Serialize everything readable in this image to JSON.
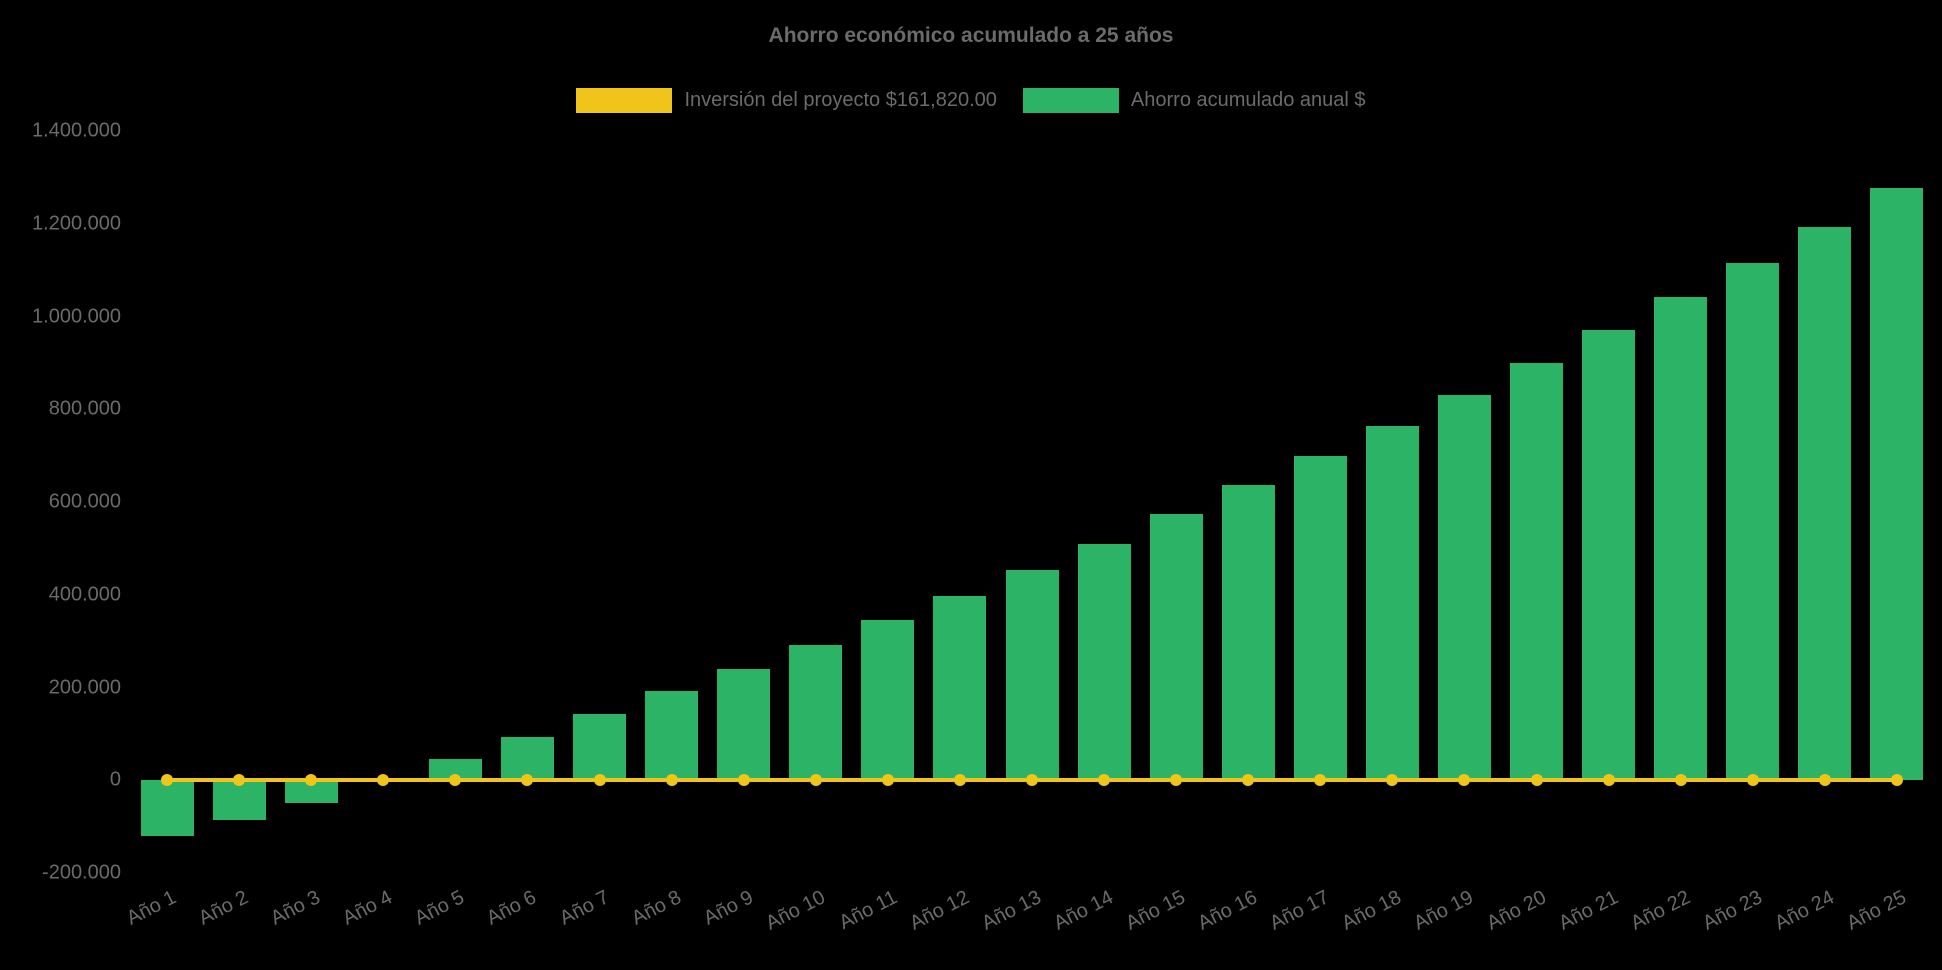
{
  "chart_data": {
    "type": "bar",
    "title": "Ahorro económico acumulado a 25 años",
    "background": "#000000",
    "text_color": "#6b6b6b",
    "grid": false,
    "legend_position": "top",
    "ylim": [
      -200000,
      1400000
    ],
    "ytick_step": 200000,
    "yticks": [
      {
        "value": -200000,
        "label": "-200.000"
      },
      {
        "value": 0,
        "label": "0"
      },
      {
        "value": 200000,
        "label": "200.000"
      },
      {
        "value": 400000,
        "label": "400.000"
      },
      {
        "value": 600000,
        "label": "600.000"
      },
      {
        "value": 800000,
        "label": "800.000"
      },
      {
        "value": 1000000,
        "label": "1.000.000"
      },
      {
        "value": 1200000,
        "label": "1.200.000"
      },
      {
        "value": 1400000,
        "label": "1.400.000"
      }
    ],
    "categories": [
      "Año 1",
      "Año 2",
      "Año 3",
      "Año 4",
      "Año 5",
      "Año 6",
      "Año 7",
      "Año 8",
      "Año 9",
      "Año 10",
      "Año 11",
      "Año 12",
      "Año 13",
      "Año 14",
      "Año 15",
      "Año 16",
      "Año 17",
      "Año 18",
      "Año 19",
      "Año 20",
      "Año 21",
      "Año 22",
      "Año 23",
      "Año 24",
      "Año 25"
    ],
    "series": [
      {
        "name": "Inversión del proyecto $161,820.00",
        "type": "line",
        "color": "#f0c419",
        "values": [
          0,
          0,
          0,
          0,
          0,
          0,
          0,
          0,
          0,
          0,
          0,
          0,
          0,
          0,
          0,
          0,
          0,
          0,
          0,
          0,
          0,
          0,
          0,
          0,
          0
        ]
      },
      {
        "name": "Ahorro acumulado anual $",
        "type": "bar",
        "color": "#2db365",
        "values": [
          -120000,
          -85000,
          -48000,
          -2000,
          45000,
          93000,
          142000,
          192000,
          240000,
          291000,
          345000,
          398000,
          454000,
          510000,
          574000,
          636000,
          700000,
          764000,
          831000,
          900000,
          970000,
          1042000,
          1116000,
          1194000,
          1277000
        ]
      }
    ]
  }
}
